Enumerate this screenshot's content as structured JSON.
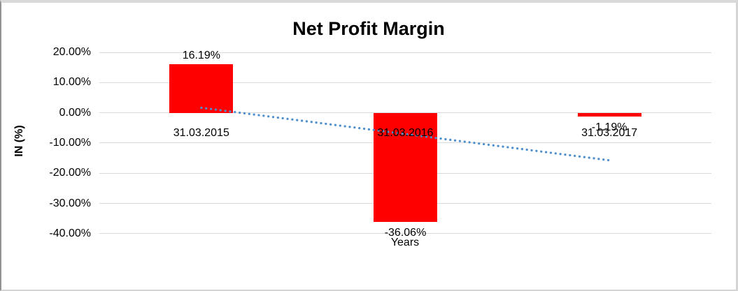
{
  "chart_data": {
    "type": "bar",
    "title": "Net Profit Margin",
    "xlabel": "Years",
    "ylabel": "IN (%)",
    "categories": [
      "31.03.2015",
      "31.03.2016",
      "31.03.2017"
    ],
    "values": [
      16.19,
      -36.06,
      -1.19
    ],
    "data_labels": [
      "16.19%",
      "-36.06%",
      "-1.19%"
    ],
    "ylim": [
      -40,
      20
    ],
    "ytick_step": 10,
    "ytick_labels": [
      "20.00%",
      "10.00%",
      "0.00%",
      "-10.00%",
      "-20.00%",
      "-30.00%",
      "-40.00%"
    ],
    "grid": true,
    "legend": "none",
    "bar_color": "#ff0000",
    "gridline_color": "#d9d9d9",
    "text_color": "#000000",
    "trendline": {
      "type": "linear",
      "style": "dotted",
      "color": "#4f8fcc",
      "start_value": 1.67,
      "end_value": -15.71
    }
  }
}
